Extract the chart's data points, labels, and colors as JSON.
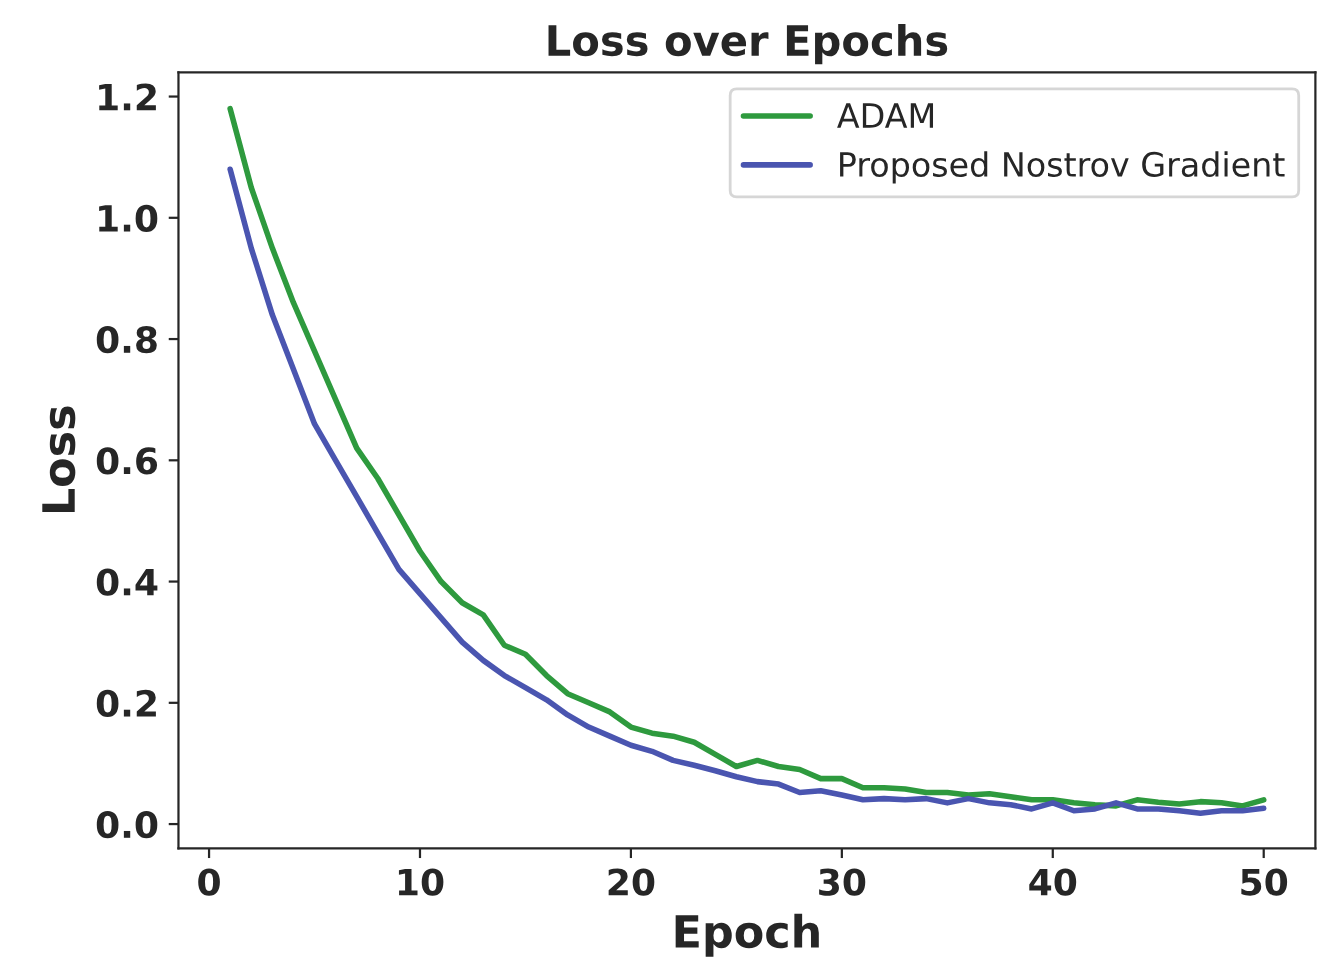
{
  "chart_data": {
    "type": "line",
    "title": "Loss over Epochs",
    "xlabel": "Epoch",
    "ylabel": "Loss",
    "x": [
      1,
      2,
      3,
      4,
      5,
      6,
      7,
      8,
      9,
      10,
      11,
      12,
      13,
      14,
      15,
      16,
      17,
      18,
      19,
      20,
      21,
      22,
      23,
      24,
      25,
      26,
      27,
      28,
      29,
      30,
      31,
      32,
      33,
      34,
      35,
      36,
      37,
      38,
      39,
      40,
      41,
      42,
      43,
      44,
      45,
      46,
      47,
      48,
      49,
      50
    ],
    "series": [
      {
        "name": "ADAM",
        "color": "#2e9a3e",
        "values": [
          1.18,
          1.05,
          0.95,
          0.86,
          0.78,
          0.7,
          0.62,
          0.57,
          0.51,
          0.45,
          0.4,
          0.365,
          0.345,
          0.295,
          0.28,
          0.245,
          0.215,
          0.2,
          0.185,
          0.16,
          0.15,
          0.145,
          0.135,
          0.115,
          0.095,
          0.105,
          0.095,
          0.09,
          0.075,
          0.075,
          0.06,
          0.06,
          0.058,
          0.052,
          0.052,
          0.048,
          0.05,
          0.045,
          0.04,
          0.04,
          0.035,
          0.032,
          0.03,
          0.04,
          0.036,
          0.033,
          0.037,
          0.035,
          0.03,
          0.04
        ]
      },
      {
        "name": "Proposed Nostrov Gradient",
        "color": "#4a55b0",
        "values": [
          1.08,
          0.95,
          0.84,
          0.75,
          0.66,
          0.6,
          0.54,
          0.48,
          0.42,
          0.38,
          0.34,
          0.3,
          0.27,
          0.245,
          0.225,
          0.205,
          0.18,
          0.16,
          0.145,
          0.13,
          0.12,
          0.105,
          0.097,
          0.088,
          0.078,
          0.07,
          0.066,
          0.052,
          0.055,
          0.048,
          0.04,
          0.042,
          0.04,
          0.042,
          0.035,
          0.042,
          0.035,
          0.032,
          0.025,
          0.035,
          0.022,
          0.025,
          0.035,
          0.025,
          0.025,
          0.022,
          0.018,
          0.022,
          0.022,
          0.026
        ]
      }
    ],
    "xlim": [
      -1.45,
      52.45
    ],
    "xticks": [
      0,
      10,
      20,
      30,
      40,
      50
    ],
    "ylim": [
      -0.04,
      1.24
    ],
    "yticks": [
      {
        "value": 0,
        "label": "0.0"
      },
      {
        "value": 0.2,
        "label": "0.2"
      },
      {
        "value": 0.4,
        "label": "0.4"
      },
      {
        "value": 0.6,
        "label": "0.6"
      },
      {
        "value": 0.8,
        "label": "0.8"
      },
      {
        "value": 1.0,
        "label": "1.0"
      },
      {
        "value": 1.2,
        "label": "1.2"
      }
    ],
    "grid": false,
    "legend": "top right",
    "marker": "none",
    "line_style": "solid"
  }
}
